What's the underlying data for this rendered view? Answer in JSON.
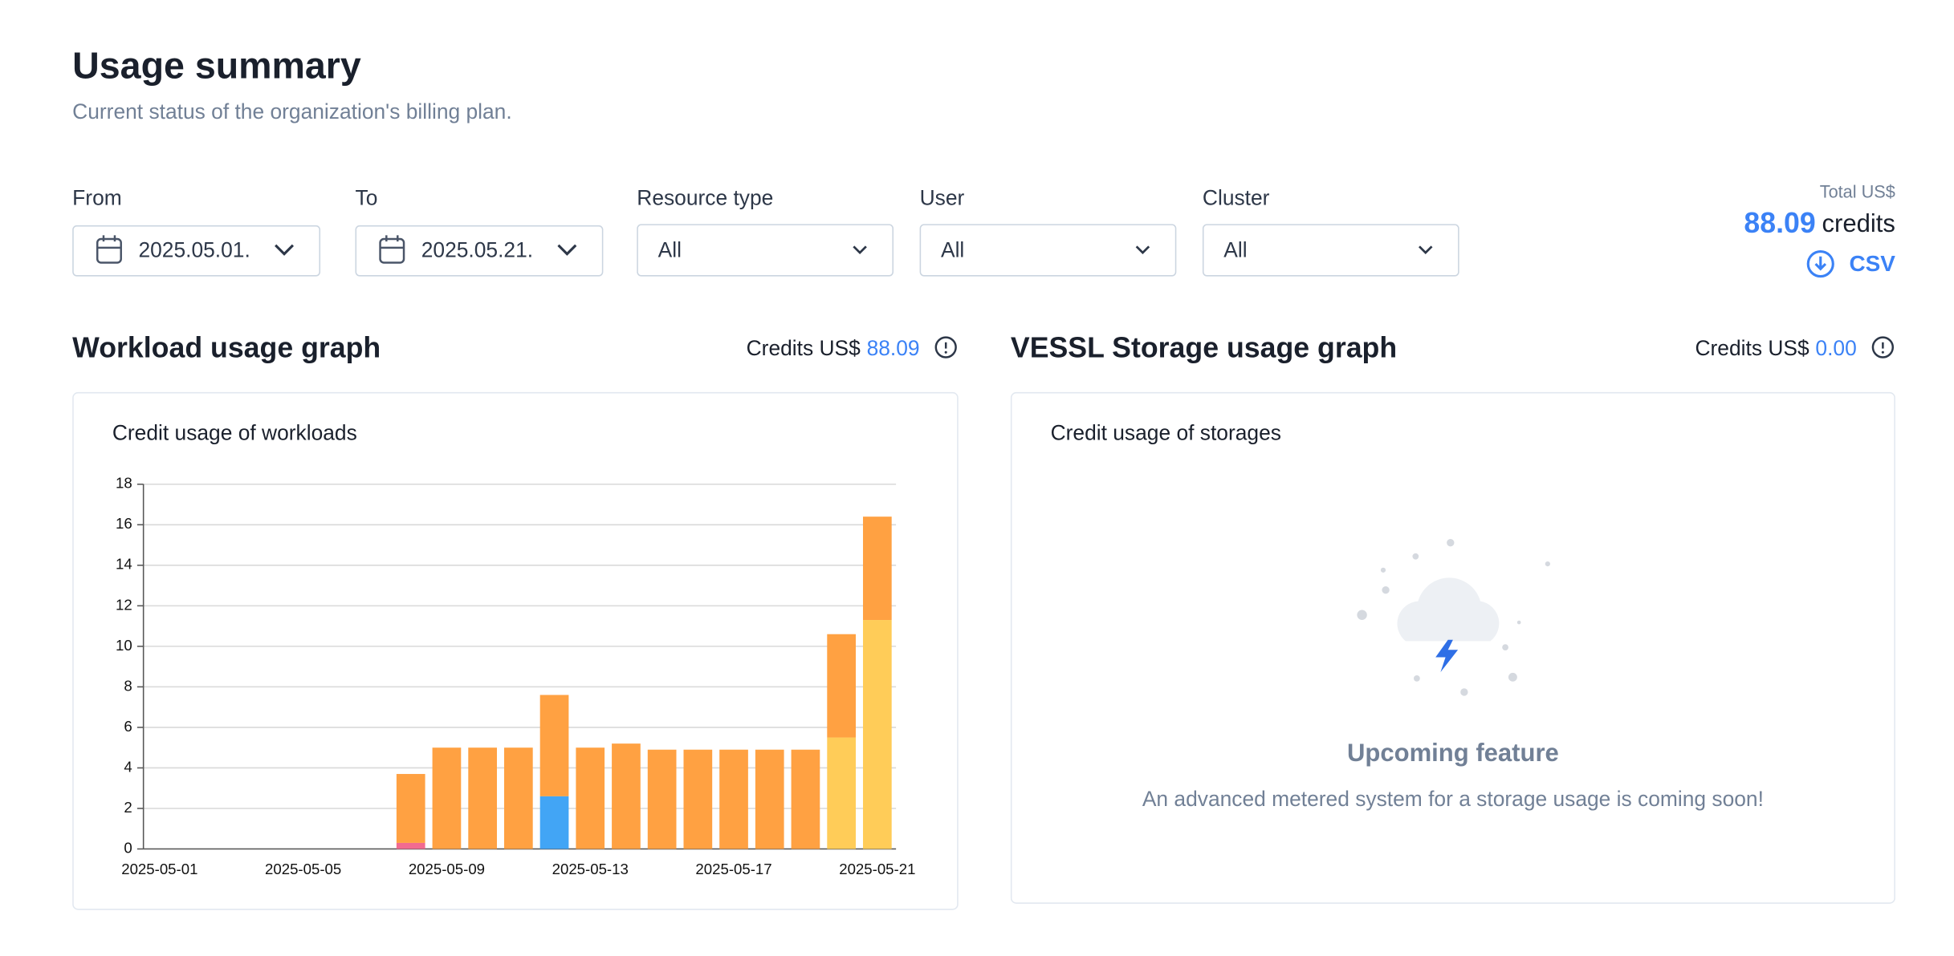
{
  "header": {
    "title": "Usage summary",
    "subtitle": "Current status of the organization's billing plan."
  },
  "filters": [
    {
      "label": "From",
      "value": "2025.05.01."
    },
    {
      "label": "To",
      "value": "2025.05.21."
    },
    {
      "label": "Resource type",
      "value": "All"
    },
    {
      "label": "User",
      "value": "All"
    },
    {
      "label": "Cluster",
      "value": "All"
    }
  ],
  "total": {
    "label": "Total US$",
    "amount": "88.09",
    "unit": "credits",
    "csv": "CSV"
  },
  "workload": {
    "title": "Workload usage graph",
    "credits_label": "Credits US$",
    "credits_value": "88.09"
  },
  "chart_data": {
    "type": "bar",
    "stacked": true,
    "title": "Credit usage of workloads",
    "categories": [
      "2025-05-01",
      null,
      null,
      null,
      "2025-05-05",
      null,
      null,
      null,
      "2025-05-09",
      null,
      null,
      null,
      "2025-05-13",
      null,
      null,
      null,
      "2025-05-17",
      null,
      null,
      null,
      "2025-05-21"
    ],
    "series": [
      {
        "color": "#f26b90",
        "values": [
          0,
          0,
          0,
          0,
          0,
          0,
          0,
          0.3,
          0,
          0,
          0,
          0,
          0,
          0,
          0,
          0,
          0,
          0,
          0,
          0,
          0
        ]
      },
      {
        "color": "#42a5f5",
        "values": [
          0,
          0,
          0,
          0,
          0,
          0,
          0,
          0,
          0,
          0,
          0,
          2.6,
          0,
          0,
          0,
          0,
          0,
          0,
          0,
          0,
          0
        ]
      },
      {
        "color": "#ffcc58",
        "values": [
          0,
          0,
          0,
          0,
          0,
          0,
          0,
          0,
          0,
          0,
          0,
          0,
          0,
          0,
          0,
          0,
          0,
          0,
          0,
          5.5,
          11.3
        ]
      },
      {
        "color": "#ffa142",
        "values": [
          0,
          0,
          0,
          0,
          0,
          0,
          0,
          3.4,
          5.0,
          5.0,
          5.0,
          5.0,
          5.0,
          5.2,
          4.9,
          4.9,
          4.9,
          4.9,
          4.9,
          5.1,
          5.1
        ]
      }
    ],
    "ylim": [
      0,
      18
    ],
    "yticks": [
      0,
      2,
      4,
      6,
      8,
      10,
      12,
      14,
      16,
      18
    ],
    "grid": true
  },
  "storage": {
    "title": "VESSL Storage usage graph",
    "credits_label": "Credits US$",
    "credits_value": "0.00",
    "chart_title": "Credit usage of storages",
    "empty_title": "Upcoming feature",
    "empty_text": "An advanced metered system for a storage usage is coming soon!"
  }
}
